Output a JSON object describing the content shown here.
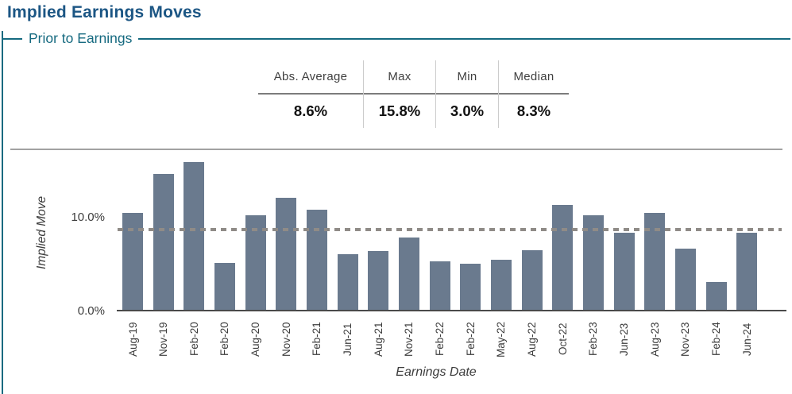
{
  "title": "Implied Earnings Moves",
  "section_label": "Prior to Earnings",
  "stats": {
    "columns": [
      {
        "label": "Abs. Average",
        "value": "8.6%"
      },
      {
        "label": "Max",
        "value": "15.8%"
      },
      {
        "label": "Min",
        "value": "3.0%"
      },
      {
        "label": "Median",
        "value": "8.3%"
      }
    ]
  },
  "chart_data": {
    "type": "bar",
    "title": "",
    "xlabel": "Earnings Date",
    "ylabel": "Implied Move",
    "categories": [
      "Aug-19",
      "Nov-19",
      "Feb-20",
      "Feb-20",
      "Aug-20",
      "Nov-20",
      "Feb-21",
      "Jun-21",
      "Aug-21",
      "Nov-21",
      "Feb-22",
      "Feb-22",
      "May-22",
      "Aug-22",
      "Oct-22",
      "Feb-23",
      "Jun-23",
      "Aug-23",
      "Nov-23",
      "Feb-24",
      "Jun-24"
    ],
    "values": [
      10.4,
      14.5,
      15.8,
      5.1,
      10.1,
      12.0,
      10.7,
      6.0,
      6.3,
      7.8,
      5.2,
      5.0,
      5.4,
      6.4,
      11.2,
      10.1,
      8.3,
      10.4,
      6.6,
      3.0,
      8.3
    ],
    "unit": "%",
    "y_ticks": [
      "0.0%",
      "10.0%"
    ],
    "ylim": [
      0,
      17
    ],
    "reference_line": {
      "value": 8.6,
      "style": "dotted",
      "meaning": "Abs. Average"
    },
    "grid": false,
    "legend": "none",
    "bar_color": "#6a7a8e",
    "dotted_line_color": "#8f8b87"
  },
  "colors": {
    "title_text": "#1c5684",
    "section_text": "#166a80",
    "group_border": "#166a80",
    "bar": "#6a7a8e",
    "axis_text": "#3d3d3d"
  }
}
